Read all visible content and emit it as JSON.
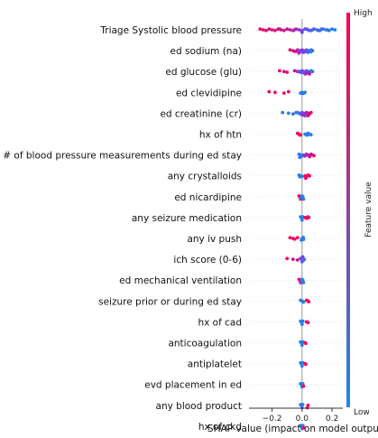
{
  "chart_data": {
    "type": "scatter",
    "subtype": "shap-beeswarm",
    "xlabel": "SHAP value (impact on model output)",
    "xticks": [
      -0.2,
      0.0,
      0.2
    ],
    "xtick_labels": [
      "−0.2",
      "0.0",
      "0.2"
    ],
    "xlim": [
      -0.33,
      0.26
    ],
    "zero_line": true,
    "colorbar": {
      "label": "Feature value",
      "high_label": "High",
      "low_label": "Low",
      "low_color": "#1e88e5",
      "high_color": "#ff0052"
    },
    "features": [
      {
        "name": "Triage Systolic blood pressure",
        "points": [
          [
            -0.28,
            0.95
          ],
          [
            -0.26,
            0.9
          ],
          [
            -0.24,
            0.9
          ],
          [
            -0.22,
            0.85
          ],
          [
            -0.2,
            0.9
          ],
          [
            -0.18,
            0.85
          ],
          [
            -0.16,
            0.8
          ],
          [
            -0.14,
            0.85
          ],
          [
            -0.12,
            0.8
          ],
          [
            -0.1,
            0.8
          ],
          [
            -0.08,
            0.75
          ],
          [
            -0.06,
            0.7
          ],
          [
            -0.04,
            0.7
          ],
          [
            -0.02,
            0.6
          ],
          [
            0.0,
            0.5
          ],
          [
            0.02,
            0.4
          ],
          [
            0.04,
            0.35
          ],
          [
            0.06,
            0.3
          ],
          [
            0.08,
            0.25
          ],
          [
            0.1,
            0.2
          ],
          [
            0.12,
            0.15
          ],
          [
            0.14,
            0.12
          ],
          [
            0.16,
            0.1
          ],
          [
            0.18,
            0.1
          ],
          [
            0.2,
            0.05
          ],
          [
            0.22,
            0.05
          ],
          [
            0.0,
            0.45
          ],
          [
            0.03,
            0.3
          ],
          [
            0.07,
            0.2
          ],
          [
            0.11,
            0.15
          ],
          [
            -0.15,
            0.8
          ],
          [
            -0.05,
            0.65
          ],
          [
            0.05,
            0.25
          ],
          [
            0.13,
            0.12
          ],
          [
            0.17,
            0.08
          ]
        ]
      },
      {
        "name": "ed sodium (na)",
        "points": [
          [
            -0.08,
            0.9
          ],
          [
            -0.06,
            0.85
          ],
          [
            -0.04,
            0.8
          ],
          [
            -0.03,
            0.7
          ],
          [
            -0.02,
            0.6
          ],
          [
            -0.01,
            0.55
          ],
          [
            0.0,
            0.5
          ],
          [
            0.01,
            0.45
          ],
          [
            0.02,
            0.35
          ],
          [
            0.03,
            0.3
          ],
          [
            0.04,
            0.25
          ],
          [
            0.05,
            0.2
          ],
          [
            0.06,
            0.15
          ],
          [
            0.07,
            0.1
          ],
          [
            -0.05,
            0.85
          ],
          [
            0.02,
            0.4
          ],
          [
            0.04,
            0.2
          ],
          [
            -0.02,
            0.7
          ],
          [
            0.06,
            0.1
          ],
          [
            0.01,
            0.5
          ]
        ]
      },
      {
        "name": "ed glucose (glu)",
        "points": [
          [
            -0.15,
            0.95
          ],
          [
            -0.12,
            0.9
          ],
          [
            -0.1,
            0.88
          ],
          [
            -0.05,
            0.8
          ],
          [
            -0.03,
            0.7
          ],
          [
            -0.01,
            0.6
          ],
          [
            0.0,
            0.5
          ],
          [
            0.01,
            0.4
          ],
          [
            0.02,
            0.35
          ],
          [
            0.03,
            0.3
          ],
          [
            0.04,
            0.25
          ],
          [
            0.05,
            0.2
          ],
          [
            0.06,
            0.15
          ],
          [
            0.07,
            0.1
          ],
          [
            0.02,
            0.5
          ],
          [
            0.04,
            0.6
          ],
          [
            -0.02,
            0.4
          ],
          [
            0.05,
            0.7
          ],
          [
            0.0,
            0.3
          ],
          [
            0.03,
            0.8
          ]
        ]
      },
      {
        "name": "ed clevidipine",
        "points": [
          [
            -0.22,
            0.95
          ],
          [
            -0.18,
            0.95
          ],
          [
            -0.12,
            0.95
          ],
          [
            -0.09,
            0.95
          ],
          [
            0.0,
            0.05
          ],
          [
            0.01,
            0.05
          ],
          [
            0.0,
            0.1
          ],
          [
            0.02,
            0.05
          ],
          [
            -0.01,
            0.05
          ],
          [
            0.01,
            0.1
          ]
        ]
      },
      {
        "name": "ed creatinine (cr)",
        "points": [
          [
            -0.13,
            0.05
          ],
          [
            -0.09,
            0.05
          ],
          [
            -0.06,
            0.1
          ],
          [
            -0.04,
            0.15
          ],
          [
            -0.02,
            0.2
          ],
          [
            -0.01,
            0.3
          ],
          [
            0.0,
            0.4
          ],
          [
            0.01,
            0.5
          ],
          [
            0.02,
            0.6
          ],
          [
            0.03,
            0.7
          ],
          [
            0.04,
            0.8
          ],
          [
            0.05,
            0.85
          ],
          [
            0.06,
            0.9
          ],
          [
            0.0,
            0.3
          ],
          [
            0.02,
            0.2
          ],
          [
            -0.03,
            0.1
          ],
          [
            0.01,
            0.6
          ],
          [
            0.04,
            0.9
          ]
        ]
      },
      {
        "name": "hx of htn",
        "points": [
          [
            -0.03,
            0.95
          ],
          [
            -0.02,
            0.95
          ],
          [
            -0.01,
            0.95
          ],
          [
            -0.015,
            0.95
          ],
          [
            0.02,
            0.05
          ],
          [
            0.03,
            0.05
          ],
          [
            0.04,
            0.05
          ],
          [
            0.05,
            0.05
          ],
          [
            0.06,
            0.05
          ],
          [
            0.035,
            0.05
          ]
        ]
      },
      {
        "name": "total # of blood pressure measurements during ed stay",
        "points": [
          [
            -0.02,
            0.1
          ],
          [
            -0.01,
            0.1
          ],
          [
            0.0,
            0.2
          ],
          [
            0.0,
            0.15
          ],
          [
            0.01,
            0.3
          ],
          [
            0.02,
            0.5
          ],
          [
            0.03,
            0.6
          ],
          [
            0.04,
            0.7
          ],
          [
            0.05,
            0.8
          ],
          [
            0.06,
            0.85
          ],
          [
            0.07,
            0.9
          ],
          [
            0.08,
            0.9
          ],
          [
            0.02,
            0.6
          ],
          [
            0.05,
            0.85
          ],
          [
            -0.015,
            0.1
          ]
        ]
      },
      {
        "name": "any crystalloids",
        "points": [
          [
            -0.02,
            0.05
          ],
          [
            -0.01,
            0.05
          ],
          [
            0.0,
            0.05
          ],
          [
            -0.015,
            0.05
          ],
          [
            0.02,
            0.95
          ],
          [
            0.03,
            0.95
          ],
          [
            0.04,
            0.95
          ],
          [
            0.05,
            0.95
          ],
          [
            0.025,
            0.95
          ]
        ]
      },
      {
        "name": "ed nicardipine",
        "points": [
          [
            -0.02,
            0.95
          ],
          [
            -0.015,
            0.95
          ],
          [
            -0.01,
            0.95
          ],
          [
            0.0,
            0.05
          ],
          [
            0.005,
            0.05
          ],
          [
            0.01,
            0.05
          ],
          [
            -0.005,
            0.05
          ]
        ]
      },
      {
        "name": "any seizure medication",
        "points": [
          [
            -0.01,
            0.05
          ],
          [
            -0.005,
            0.05
          ],
          [
            0.0,
            0.05
          ],
          [
            0.005,
            0.05
          ],
          [
            0.02,
            0.95
          ],
          [
            0.03,
            0.95
          ],
          [
            0.04,
            0.95
          ],
          [
            0.045,
            0.95
          ]
        ]
      },
      {
        "name": "any iv push",
        "points": [
          [
            -0.08,
            0.95
          ],
          [
            -0.06,
            0.95
          ],
          [
            -0.05,
            0.95
          ],
          [
            -0.03,
            0.95
          ],
          [
            0.0,
            0.05
          ],
          [
            0.005,
            0.05
          ],
          [
            0.01,
            0.05
          ],
          [
            -0.005,
            0.05
          ],
          [
            0.008,
            0.05
          ]
        ]
      },
      {
        "name": "ich score (0-6)",
        "points": [
          [
            -0.1,
            0.95
          ],
          [
            -0.06,
            0.9
          ],
          [
            -0.03,
            0.8
          ],
          [
            -0.01,
            0.6
          ],
          [
            0.0,
            0.4
          ],
          [
            0.005,
            0.2
          ],
          [
            0.01,
            0.1
          ],
          [
            0.015,
            0.1
          ],
          [
            0.0,
            0.3
          ],
          [
            0.005,
            0.5
          ]
        ]
      },
      {
        "name": "ed mechanical ventilation",
        "points": [
          [
            -0.02,
            0.95
          ],
          [
            -0.015,
            0.95
          ],
          [
            -0.01,
            0.95
          ],
          [
            0.0,
            0.05
          ],
          [
            0.005,
            0.05
          ],
          [
            0.01,
            0.05
          ],
          [
            -0.005,
            0.05
          ]
        ]
      },
      {
        "name": "seizure prior or during ed stay",
        "points": [
          [
            -0.01,
            0.05
          ],
          [
            0.0,
            0.05
          ],
          [
            0.005,
            0.05
          ],
          [
            0.01,
            0.05
          ],
          [
            0.04,
            0.95
          ],
          [
            0.045,
            0.95
          ],
          [
            0.03,
            0.95
          ]
        ]
      },
      {
        "name": "hx of cad",
        "points": [
          [
            -0.01,
            0.05
          ],
          [
            -0.005,
            0.05
          ],
          [
            0.0,
            0.05
          ],
          [
            0.005,
            0.05
          ],
          [
            0.03,
            0.95
          ],
          [
            0.04,
            0.95
          ]
        ]
      },
      {
        "name": "anticoagulation",
        "points": [
          [
            -0.01,
            0.05
          ],
          [
            -0.005,
            0.05
          ],
          [
            0.0,
            0.05
          ],
          [
            0.005,
            0.05
          ],
          [
            0.02,
            0.95
          ],
          [
            0.025,
            0.95
          ]
        ]
      },
      {
        "name": "antiplatelet",
        "points": [
          [
            -0.01,
            0.05
          ],
          [
            -0.005,
            0.05
          ],
          [
            0.0,
            0.05
          ],
          [
            0.005,
            0.05
          ],
          [
            0.02,
            0.95
          ],
          [
            0.025,
            0.95
          ]
        ]
      },
      {
        "name": "evd placement in ed",
        "points": [
          [
            -0.01,
            0.05
          ],
          [
            -0.005,
            0.05
          ],
          [
            0.0,
            0.05
          ],
          [
            0.005,
            0.05
          ],
          [
            0.01,
            0.95
          ]
        ]
      },
      {
        "name": "any blood product",
        "points": [
          [
            -0.01,
            0.05
          ],
          [
            -0.005,
            0.05
          ],
          [
            0.0,
            0.05
          ],
          [
            0.005,
            0.05
          ],
          [
            0.04,
            0.95
          ],
          [
            0.035,
            0.95
          ]
        ]
      },
      {
        "name": "hx of ckd",
        "points": [
          [
            -0.01,
            0.05
          ],
          [
            -0.005,
            0.05
          ],
          [
            0.0,
            0.05
          ],
          [
            0.005,
            0.05
          ],
          [
            0.01,
            0.95
          ]
        ]
      }
    ]
  }
}
